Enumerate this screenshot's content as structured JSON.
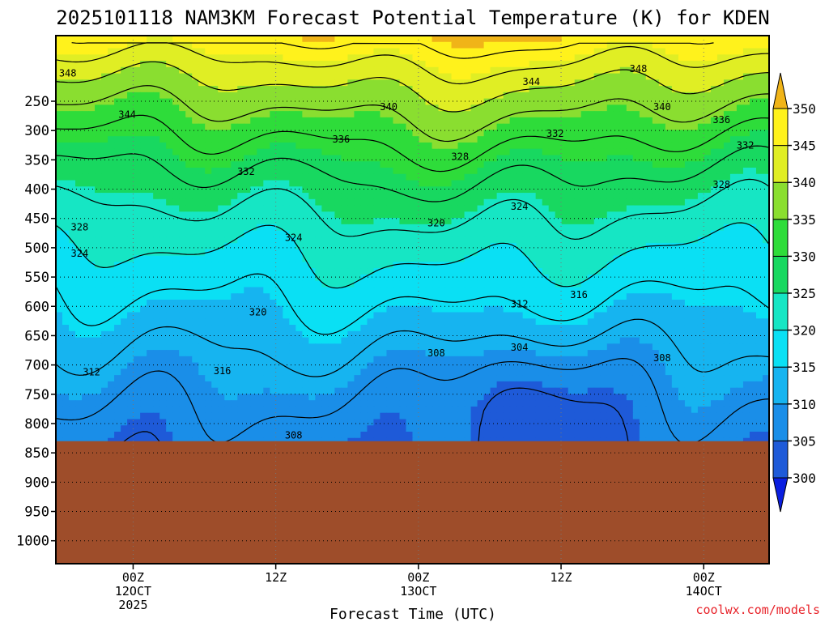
{
  "chart_data": {
    "type": "heatmap",
    "title": "2025101118 NAM3KM Forecast Potential Temperature (K) for KDEN",
    "xlabel": "Forecast Time (UTC)",
    "ylabel": "",
    "y_axis": {
      "inverted": true,
      "ticks": [
        250,
        300,
        350,
        400,
        450,
        500,
        550,
        600,
        650,
        700,
        750,
        800,
        850,
        900,
        950,
        1000
      ],
      "tick_labels": [
        "250",
        "300",
        "350",
        "400",
        "450",
        "500",
        "550",
        "600",
        "650",
        "700",
        "750",
        "800",
        "850",
        "900",
        "950",
        "1000"
      ]
    },
    "x_axis": {
      "ticks": [
        {
          "hour": 6,
          "lines": [
            "00Z",
            "12OCT",
            "2025"
          ]
        },
        {
          "hour": 18,
          "lines": [
            "12Z"
          ]
        },
        {
          "hour": 30,
          "lines": [
            "00Z",
            "13OCT"
          ]
        },
        {
          "hour": 42,
          "lines": [
            "12Z"
          ]
        },
        {
          "hour": 54,
          "lines": [
            "00Z",
            "14OCT"
          ]
        }
      ]
    },
    "grid": true,
    "colorbar": {
      "placement": "right",
      "levels": [
        300,
        305,
        310,
        315,
        320,
        325,
        330,
        335,
        340,
        345,
        350
      ],
      "colors": [
        "#0a1ee0",
        "#1e5ad8",
        "#1a8ee8",
        "#16b4f0",
        "#0ae0f4",
        "#16e6c4",
        "#18d860",
        "#2edc3a",
        "#8ade30",
        "#e0ee24",
        "#fff21c",
        "#f0b418"
      ],
      "labels": [
        "300",
        "305",
        "310",
        "315",
        "320",
        "325",
        "330",
        "335",
        "340",
        "345",
        "350"
      ]
    },
    "contour_labels": [
      {
        "value": "348",
        "hour": 0.5,
        "p": 202
      },
      {
        "value": "348",
        "hour": 48.5,
        "p": 195
      },
      {
        "value": "344",
        "hour": 5.5,
        "p": 273
      },
      {
        "value": "344",
        "hour": 39.5,
        "p": 217
      },
      {
        "value": "340",
        "hour": 27.5,
        "p": 260
      },
      {
        "value": "340",
        "hour": 50.5,
        "p": 260
      },
      {
        "value": "336",
        "hour": 23.5,
        "p": 315
      },
      {
        "value": "336",
        "hour": 55.5,
        "p": 282
      },
      {
        "value": "332",
        "hour": 15.5,
        "p": 370
      },
      {
        "value": "332",
        "hour": 41.5,
        "p": 305
      },
      {
        "value": "332",
        "hour": 57.5,
        "p": 325
      },
      {
        "value": "328",
        "hour": 1.5,
        "p": 465
      },
      {
        "value": "328",
        "hour": 33.5,
        "p": 345
      },
      {
        "value": "328",
        "hour": 55.5,
        "p": 392
      },
      {
        "value": "324",
        "hour": 1.5,
        "p": 510
      },
      {
        "value": "324",
        "hour": 19.5,
        "p": 483
      },
      {
        "value": "324",
        "hour": 38.5,
        "p": 430
      },
      {
        "value": "320",
        "hour": 16.5,
        "p": 610
      },
      {
        "value": "320",
        "hour": 31.5,
        "p": 458
      },
      {
        "value": "316",
        "hour": 13.5,
        "p": 710
      },
      {
        "value": "316",
        "hour": 43.5,
        "p": 580
      },
      {
        "value": "312",
        "hour": 2.5,
        "p": 712
      },
      {
        "value": "312",
        "hour": 38.5,
        "p": 596
      },
      {
        "value": "308",
        "hour": 19.5,
        "p": 820
      },
      {
        "value": "308",
        "hour": 31.5,
        "p": 680
      },
      {
        "value": "308",
        "hour": 50.5,
        "p": 688
      },
      {
        "value": "304",
        "hour": 38.5,
        "p": 670
      }
    ],
    "surface": {
      "p": 830,
      "color": "#9e4d2a"
    }
  },
  "credit": "coolwx.com/models"
}
